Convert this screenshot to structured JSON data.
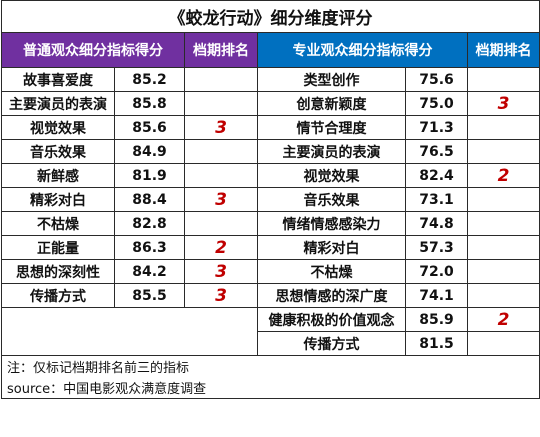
{
  "title": "《蛟龙行动》细分维度评分",
  "headers": {
    "general": "普通观众细分指标得分",
    "general_rank": "档期排名",
    "pro": "专业观众细分指标得分",
    "pro_rank": "档期排名"
  },
  "general_rows": [
    {
      "label": "故事喜爱度",
      "score": "85.2",
      "rank": ""
    },
    {
      "label": "主要演员的表演",
      "score": "85.8",
      "rank": ""
    },
    {
      "label": "视觉效果",
      "score": "85.6",
      "rank": "3"
    },
    {
      "label": "音乐效果",
      "score": "84.9",
      "rank": ""
    },
    {
      "label": "新鲜感",
      "score": "81.9",
      "rank": ""
    },
    {
      "label": "精彩对白",
      "score": "88.4",
      "rank": "3"
    },
    {
      "label": "不枯燥",
      "score": "82.8",
      "rank": ""
    },
    {
      "label": "正能量",
      "score": "86.3",
      "rank": "2"
    },
    {
      "label": "思想的深刻性",
      "score": "84.2",
      "rank": "3"
    },
    {
      "label": "传播方式",
      "score": "85.5",
      "rank": "3"
    }
  ],
  "pro_rows": [
    {
      "label": "类型创作",
      "score": "75.6",
      "rank": ""
    },
    {
      "label": "创意新颖度",
      "score": "75.0",
      "rank": "3"
    },
    {
      "label": "情节合理度",
      "score": "71.3",
      "rank": ""
    },
    {
      "label": "主要演员的表演",
      "score": "76.5",
      "rank": ""
    },
    {
      "label": "视觉效果",
      "score": "82.4",
      "rank": "2"
    },
    {
      "label": "音乐效果",
      "score": "73.1",
      "rank": ""
    },
    {
      "label": "情绪情感感染力",
      "score": "74.8",
      "rank": ""
    },
    {
      "label": "精彩对白",
      "score": "57.3",
      "rank": ""
    },
    {
      "label": "不枯燥",
      "score": "72.0",
      "rank": ""
    },
    {
      "label": "思想情感的深广度",
      "score": "74.1",
      "rank": ""
    },
    {
      "label": "健康积极的价值观念",
      "score": "85.9",
      "rank": "2"
    },
    {
      "label": "传播方式",
      "score": "81.5",
      "rank": ""
    }
  ],
  "notes": {
    "note": "注：仅标记档期排名前三的指标",
    "source": "source：中国电影观众满意度调查"
  }
}
